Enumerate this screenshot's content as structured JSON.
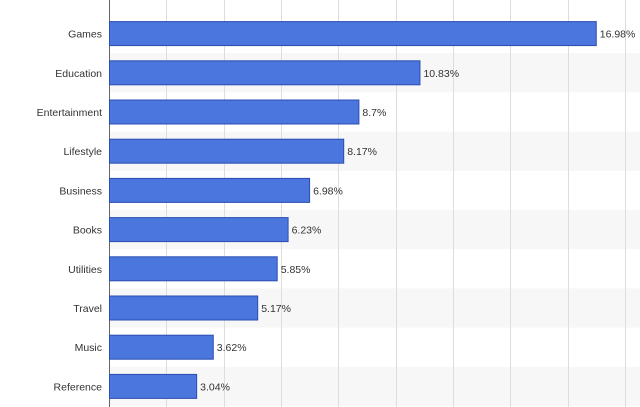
{
  "chart_data": {
    "type": "bar",
    "orientation": "horizontal",
    "categories": [
      "Games",
      "Education",
      "Entertainment",
      "Lifestyle",
      "Business",
      "Books",
      "Utilities",
      "Travel",
      "Music",
      "Reference"
    ],
    "values": [
      16.98,
      10.83,
      8.7,
      8.17,
      6.98,
      6.23,
      5.85,
      5.17,
      3.62,
      3.04
    ],
    "value_labels": [
      "16.98%",
      "10.83%",
      "8.7%",
      "8.17%",
      "6.98%",
      "6.23%",
      "5.85%",
      "5.17%",
      "3.62%",
      "3.04%"
    ],
    "unit": "%",
    "xlim": [
      0,
      18
    ],
    "grid_step": 2,
    "grid": true,
    "alternating_row_bands": true,
    "title": "",
    "xlabel": "",
    "ylabel": "",
    "colors": {
      "bar": "#4a76dd",
      "bar_border": "#2b4fb0",
      "band": "#f7f7f7",
      "grid": "#dddddd"
    }
  }
}
